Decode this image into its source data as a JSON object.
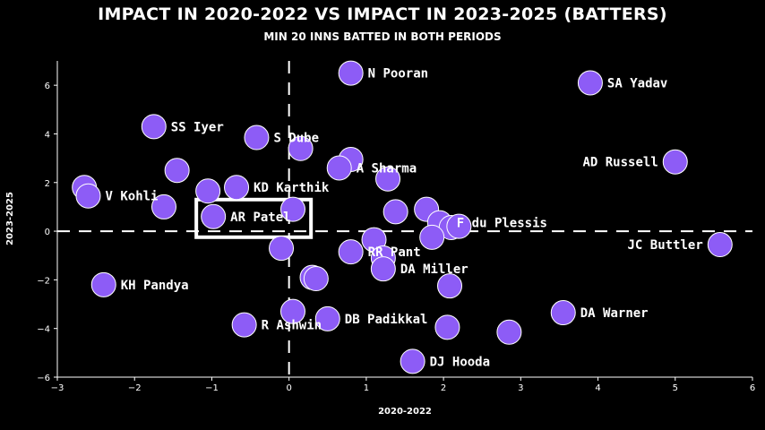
{
  "title": "IMPACT IN 2020-2022 VS  IMPACT IN 2023-2025 (BATTERS)",
  "subtitle": "MIN 20 INNS BATTED IN BOTH PERIODS",
  "chart_data": {
    "type": "scatter",
    "title": "IMPACT IN 2020-2022 VS  IMPACT IN 2023-2025 (BATTERS)",
    "subtitle": "MIN 20 INNS BATTED IN BOTH PERIODS",
    "xlabel": "2020-2022",
    "ylabel": "2023-2025",
    "xlim": [
      -3,
      6
    ],
    "ylim": [
      -6,
      7
    ],
    "xticks": [
      -3,
      -2,
      -1,
      0,
      1,
      2,
      3,
      4,
      5,
      6
    ],
    "yticks": [
      -6,
      -4,
      -2,
      0,
      2,
      4,
      6
    ],
    "grid": false,
    "reference_lines": {
      "x": 0,
      "y": 0,
      "style": "dashed"
    },
    "marker_color": "#8d5cf6",
    "highlight_box_label": "AR Patel",
    "points": [
      {
        "x": 0.8,
        "y": 6.5,
        "label": "N Pooran"
      },
      {
        "x": 3.9,
        "y": 6.1,
        "label": "SA Yadav"
      },
      {
        "x": -1.75,
        "y": 4.3,
        "label": "SS Iyer"
      },
      {
        "x": -0.42,
        "y": 3.85,
        "label": "S Dube"
      },
      {
        "x": 0.15,
        "y": 3.4,
        "label": ""
      },
      {
        "x": 0.8,
        "y": 2.95,
        "label": ""
      },
      {
        "x": 0.65,
        "y": 2.6,
        "label": "A Sharma"
      },
      {
        "x": -1.45,
        "y": 2.5,
        "label": ""
      },
      {
        "x": 1.28,
        "y": 2.15,
        "label": ""
      },
      {
        "x": 5.0,
        "y": 2.85,
        "label": "AD Russell"
      },
      {
        "x": -2.65,
        "y": 1.8,
        "label": ""
      },
      {
        "x": -2.6,
        "y": 1.45,
        "label": "V Kohli"
      },
      {
        "x": -1.05,
        "y": 1.65,
        "label": ""
      },
      {
        "x": -0.68,
        "y": 1.8,
        "label": "KD Karthik"
      },
      {
        "x": -1.62,
        "y": 1.0,
        "label": ""
      },
      {
        "x": -0.98,
        "y": 0.6,
        "label": "AR Patel"
      },
      {
        "x": 0.05,
        "y": 0.9,
        "label": ""
      },
      {
        "x": 1.38,
        "y": 0.8,
        "label": ""
      },
      {
        "x": 1.78,
        "y": 0.9,
        "label": ""
      },
      {
        "x": 1.95,
        "y": 0.35,
        "label": "F du Plessis"
      },
      {
        "x": 2.1,
        "y": 0.15,
        "label": ""
      },
      {
        "x": 2.2,
        "y": 0.2,
        "label": ""
      },
      {
        "x": 1.85,
        "y": -0.25,
        "label": ""
      },
      {
        "x": 1.1,
        "y": -0.35,
        "label": ""
      },
      {
        "x": -0.1,
        "y": -0.7,
        "label": ""
      },
      {
        "x": 0.8,
        "y": -0.85,
        "label": "RR Pant"
      },
      {
        "x": 1.22,
        "y": -1.1,
        "label": ""
      },
      {
        "x": 1.22,
        "y": -1.55,
        "label": "DA Miller"
      },
      {
        "x": 5.58,
        "y": -0.55,
        "label": "JC Buttler"
      },
      {
        "x": -2.4,
        "y": -2.2,
        "label": "KH Pandya"
      },
      {
        "x": 0.3,
        "y": -1.9,
        "label": ""
      },
      {
        "x": 0.35,
        "y": -1.95,
        "label": ""
      },
      {
        "x": 2.08,
        "y": -2.25,
        "label": ""
      },
      {
        "x": 0.05,
        "y": -3.3,
        "label": ""
      },
      {
        "x": 0.5,
        "y": -3.6,
        "label": "DB Padikkal"
      },
      {
        "x": -0.58,
        "y": -3.85,
        "label": "R Ashwin"
      },
      {
        "x": 2.05,
        "y": -3.95,
        "label": ""
      },
      {
        "x": 3.55,
        "y": -3.35,
        "label": "DA Warner"
      },
      {
        "x": 2.85,
        "y": -4.15,
        "label": ""
      },
      {
        "x": 1.6,
        "y": -5.35,
        "label": "DJ Hooda"
      }
    ]
  }
}
